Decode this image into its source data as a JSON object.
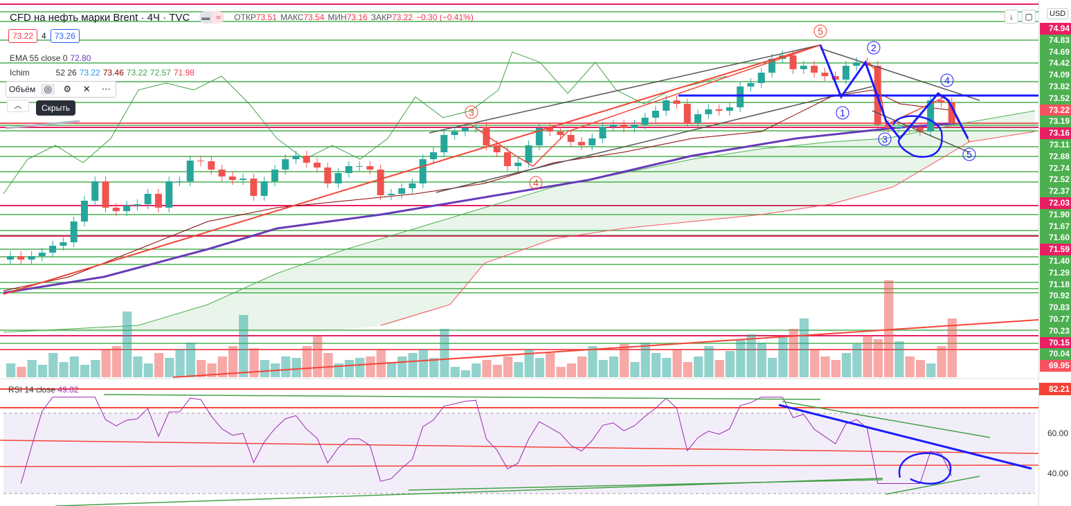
{
  "header": {
    "title": "CFD на нефть марки Brent · 4Ч · TVC",
    "open_label": "ОТКР",
    "open": "73.51",
    "high_label": "МАКС",
    "high": "73.54",
    "low_label": "МИН",
    "low": "73.16",
    "close_label": "ЗАКР",
    "close": "73.22",
    "change": "−0.30 (−0.41%)",
    "bid": "73.22",
    "spread": "4",
    "ask": "73.26"
  },
  "indicators": {
    "ema_label": "EMA 55 close 0",
    "ema_value": "72.80",
    "ichi_label": "Ichim",
    "ichi_params": "52 26",
    "ichi_values": [
      "73.22",
      "73.46",
      "73.22",
      "72.57",
      "71.98"
    ],
    "tooltip": "Скрыть",
    "volume_label": "Объём"
  },
  "rsi": {
    "label": "RSI 14 close",
    "value": "49.02",
    "axis": [
      "60.00",
      "40.00"
    ],
    "badge": "82.21"
  },
  "axis": {
    "currency": "USD",
    "labels": [
      {
        "t": "74.94",
        "c": "#e91e63"
      },
      {
        "t": "74.83",
        "c": "#4caf50"
      },
      {
        "t": "74.69",
        "c": "#4caf50"
      },
      {
        "t": "74.42",
        "c": "#4caf50"
      },
      {
        "t": "74.09",
        "c": "#4caf50"
      },
      {
        "t": "73.82",
        "c": "#4caf50"
      },
      {
        "t": "73.52",
        "c": "#4caf50"
      },
      {
        "t": "73.22",
        "c": "#f7525f"
      },
      {
        "t": "73.19",
        "c": "#4caf50"
      },
      {
        "t": "73.16",
        "c": "#e91e63"
      },
      {
        "t": "73.11",
        "c": "#4caf50"
      },
      {
        "t": "72.88",
        "c": "#4caf50"
      },
      {
        "t": "72.74",
        "c": "#4caf50"
      },
      {
        "t": "72.52",
        "c": "#4caf50"
      },
      {
        "t": "72.37",
        "c": "#4caf50"
      },
      {
        "t": "72.03",
        "c": "#e91e63"
      },
      {
        "t": "71.90",
        "c": "#4caf50"
      },
      {
        "t": "71.67",
        "c": "#4caf50"
      },
      {
        "t": "71.60",
        "c": "#4caf50"
      },
      {
        "t": "71.59",
        "c": "#e91e63"
      },
      {
        "t": "71.40",
        "c": "#4caf50"
      },
      {
        "t": "71.29",
        "c": "#4caf50"
      },
      {
        "t": "71.18",
        "c": "#4caf50"
      },
      {
        "t": "70.92",
        "c": "#4caf50"
      },
      {
        "t": "70.83",
        "c": "#4caf50"
      },
      {
        "t": "70.77",
        "c": "#4caf50"
      },
      {
        "t": "70.23",
        "c": "#4caf50"
      },
      {
        "t": "70.15",
        "c": "#e91e63"
      },
      {
        "t": "70.04",
        "c": "#4caf50"
      },
      {
        "t": "69.95",
        "c": "#f7525f"
      }
    ]
  },
  "waves": {
    "red": [
      "5",
      "3",
      "4"
    ],
    "blue": [
      "2",
      "1",
      "3",
      "4",
      "5"
    ]
  },
  "chart_data": {
    "type": "candlestick",
    "price_range": [
      69.6,
      75.0
    ],
    "closes": [
      71.3,
      71.25,
      71.3,
      71.35,
      71.45,
      71.5,
      71.8,
      72.1,
      72.38,
      72.0,
      71.95,
      72.03,
      72.05,
      72.2,
      72.0,
      72.38,
      72.38,
      72.68,
      72.67,
      72.55,
      72.45,
      72.4,
      72.42,
      72.17,
      72.38,
      72.55,
      72.7,
      72.75,
      72.65,
      72.58,
      72.35,
      72.5,
      72.6,
      72.6,
      72.55,
      72.18,
      72.2,
      72.28,
      72.35,
      72.7,
      72.8,
      73.05,
      73.1,
      73.15,
      73.17,
      72.9,
      72.8,
      72.6,
      72.65,
      72.9,
      73.15,
      73.1,
      73.05,
      72.95,
      72.9,
      73.0,
      73.17,
      73.2,
      73.15,
      73.2,
      73.3,
      73.4,
      73.55,
      73.5,
      73.22,
      73.35,
      73.42,
      73.4,
      73.45,
      73.75,
      73.8,
      73.95,
      74.15,
      74.2,
      74.0,
      74.05,
      73.95,
      73.9,
      73.85,
      74.05,
      74.1,
      74.05,
      73.2,
      73.15,
      73.17,
      73.15,
      73.1,
      73.55,
      73.52,
      73.22
    ],
    "volumes": [
      20,
      15,
      25,
      18,
      35,
      22,
      30,
      18,
      25,
      40,
      45,
      95,
      30,
      20,
      35,
      28,
      40,
      50,
      25,
      20,
      30,
      45,
      90,
      42,
      25,
      20,
      30,
      28,
      45,
      60,
      35,
      20,
      25,
      28,
      30,
      40,
      22,
      30,
      35,
      40,
      28,
      70,
      15,
      10,
      20,
      25,
      18,
      30,
      22,
      40,
      28,
      35,
      15,
      20,
      30,
      45,
      25,
      30,
      48,
      22,
      50,
      35,
      28,
      40,
      22,
      30,
      45,
      25,
      38,
      55,
      62,
      50,
      28,
      58,
      70,
      85,
      40,
      30,
      25,
      35,
      48,
      60,
      55,
      140,
      52,
      30,
      25,
      20,
      45,
      85
    ]
  }
}
